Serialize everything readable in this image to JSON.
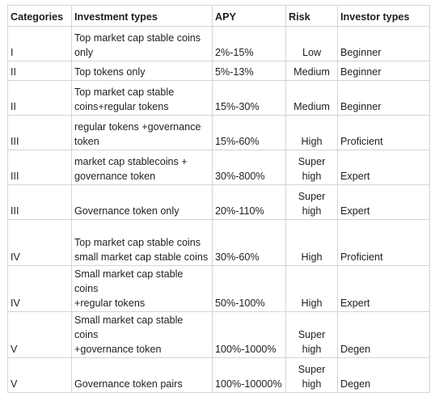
{
  "table": {
    "headers": [
      "Categories",
      "Investment types",
      "APY",
      "Risk",
      "Investor types"
    ],
    "rows": [
      {
        "category": "I",
        "type": "Top market cap stable coins only",
        "apy": "2%-15%",
        "risk": "Low",
        "investor": "Beginner"
      },
      {
        "category": "II",
        "type": "Top tokens only",
        "apy": "5%-13%",
        "risk": "Medium",
        "investor": "Beginner"
      },
      {
        "category": "II",
        "type": "Top market cap stable coins+regular tokens",
        "apy": "15%-30%",
        "risk": "Medium",
        "investor": "Beginner"
      },
      {
        "category": "III",
        "type": "regular tokens +governance token",
        "apy": "15%-60%",
        "risk": "High",
        "investor": "Proficient"
      },
      {
        "category": "III",
        "type": "market cap stablecoins + governance token",
        "apy": "30%-800%",
        "risk": "Super high",
        "investor": "Expert"
      },
      {
        "category": "III",
        "type": "Governance token only",
        "apy": "20%-110%",
        "risk": "Super high",
        "investor": "Expert"
      },
      {
        "category": "IV",
        "type": "Top market cap stable coins small market cap stable coins",
        "apy": "30%-60%",
        "risk": "High",
        "investor": "Proficient"
      },
      {
        "category": "IV",
        "type": "Small market cap stable coins\n+regular tokens",
        "apy": "50%-100%",
        "risk": "High",
        "investor": "Expert"
      },
      {
        "category": "V",
        "type": "Small market cap stable coins\n+governance token",
        "apy": "100%-1000%",
        "risk": "Super high",
        "investor": "Degen"
      },
      {
        "category": "V",
        "type": "Governance token pairs",
        "apy": "100%-10000%",
        "risk": "Super high",
        "investor": "Degen"
      }
    ]
  }
}
